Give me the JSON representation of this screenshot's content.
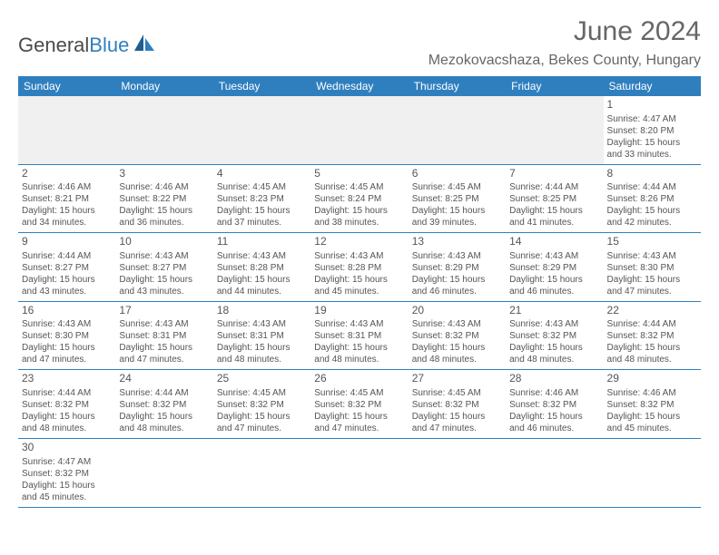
{
  "logo": {
    "text1": "General",
    "text2": "Blue"
  },
  "title": "June 2024",
  "location": "Mezokovacshaza, Bekes County, Hungary",
  "colors": {
    "header_bg": "#2f7fbf",
    "header_text": "#ffffff",
    "text": "#555555",
    "title_text": "#666666",
    "row_border": "#2f7fbf",
    "empty_bg": "#f0f0f0",
    "page_bg": "#ffffff"
  },
  "weekdays": [
    "Sunday",
    "Monday",
    "Tuesday",
    "Wednesday",
    "Thursday",
    "Friday",
    "Saturday"
  ],
  "weeks": [
    [
      null,
      null,
      null,
      null,
      null,
      null,
      {
        "n": "1",
        "sr": "Sunrise: 4:47 AM",
        "ss": "Sunset: 8:20 PM",
        "d1": "Daylight: 15 hours",
        "d2": "and 33 minutes."
      }
    ],
    [
      {
        "n": "2",
        "sr": "Sunrise: 4:46 AM",
        "ss": "Sunset: 8:21 PM",
        "d1": "Daylight: 15 hours",
        "d2": "and 34 minutes."
      },
      {
        "n": "3",
        "sr": "Sunrise: 4:46 AM",
        "ss": "Sunset: 8:22 PM",
        "d1": "Daylight: 15 hours",
        "d2": "and 36 minutes."
      },
      {
        "n": "4",
        "sr": "Sunrise: 4:45 AM",
        "ss": "Sunset: 8:23 PM",
        "d1": "Daylight: 15 hours",
        "d2": "and 37 minutes."
      },
      {
        "n": "5",
        "sr": "Sunrise: 4:45 AM",
        "ss": "Sunset: 8:24 PM",
        "d1": "Daylight: 15 hours",
        "d2": "and 38 minutes."
      },
      {
        "n": "6",
        "sr": "Sunrise: 4:45 AM",
        "ss": "Sunset: 8:25 PM",
        "d1": "Daylight: 15 hours",
        "d2": "and 39 minutes."
      },
      {
        "n": "7",
        "sr": "Sunrise: 4:44 AM",
        "ss": "Sunset: 8:25 PM",
        "d1": "Daylight: 15 hours",
        "d2": "and 41 minutes."
      },
      {
        "n": "8",
        "sr": "Sunrise: 4:44 AM",
        "ss": "Sunset: 8:26 PM",
        "d1": "Daylight: 15 hours",
        "d2": "and 42 minutes."
      }
    ],
    [
      {
        "n": "9",
        "sr": "Sunrise: 4:44 AM",
        "ss": "Sunset: 8:27 PM",
        "d1": "Daylight: 15 hours",
        "d2": "and 43 minutes."
      },
      {
        "n": "10",
        "sr": "Sunrise: 4:43 AM",
        "ss": "Sunset: 8:27 PM",
        "d1": "Daylight: 15 hours",
        "d2": "and 43 minutes."
      },
      {
        "n": "11",
        "sr": "Sunrise: 4:43 AM",
        "ss": "Sunset: 8:28 PM",
        "d1": "Daylight: 15 hours",
        "d2": "and 44 minutes."
      },
      {
        "n": "12",
        "sr": "Sunrise: 4:43 AM",
        "ss": "Sunset: 8:28 PM",
        "d1": "Daylight: 15 hours",
        "d2": "and 45 minutes."
      },
      {
        "n": "13",
        "sr": "Sunrise: 4:43 AM",
        "ss": "Sunset: 8:29 PM",
        "d1": "Daylight: 15 hours",
        "d2": "and 46 minutes."
      },
      {
        "n": "14",
        "sr": "Sunrise: 4:43 AM",
        "ss": "Sunset: 8:29 PM",
        "d1": "Daylight: 15 hours",
        "d2": "and 46 minutes."
      },
      {
        "n": "15",
        "sr": "Sunrise: 4:43 AM",
        "ss": "Sunset: 8:30 PM",
        "d1": "Daylight: 15 hours",
        "d2": "and 47 minutes."
      }
    ],
    [
      {
        "n": "16",
        "sr": "Sunrise: 4:43 AM",
        "ss": "Sunset: 8:30 PM",
        "d1": "Daylight: 15 hours",
        "d2": "and 47 minutes."
      },
      {
        "n": "17",
        "sr": "Sunrise: 4:43 AM",
        "ss": "Sunset: 8:31 PM",
        "d1": "Daylight: 15 hours",
        "d2": "and 47 minutes."
      },
      {
        "n": "18",
        "sr": "Sunrise: 4:43 AM",
        "ss": "Sunset: 8:31 PM",
        "d1": "Daylight: 15 hours",
        "d2": "and 48 minutes."
      },
      {
        "n": "19",
        "sr": "Sunrise: 4:43 AM",
        "ss": "Sunset: 8:31 PM",
        "d1": "Daylight: 15 hours",
        "d2": "and 48 minutes."
      },
      {
        "n": "20",
        "sr": "Sunrise: 4:43 AM",
        "ss": "Sunset: 8:32 PM",
        "d1": "Daylight: 15 hours",
        "d2": "and 48 minutes."
      },
      {
        "n": "21",
        "sr": "Sunrise: 4:43 AM",
        "ss": "Sunset: 8:32 PM",
        "d1": "Daylight: 15 hours",
        "d2": "and 48 minutes."
      },
      {
        "n": "22",
        "sr": "Sunrise: 4:44 AM",
        "ss": "Sunset: 8:32 PM",
        "d1": "Daylight: 15 hours",
        "d2": "and 48 minutes."
      }
    ],
    [
      {
        "n": "23",
        "sr": "Sunrise: 4:44 AM",
        "ss": "Sunset: 8:32 PM",
        "d1": "Daylight: 15 hours",
        "d2": "and 48 minutes."
      },
      {
        "n": "24",
        "sr": "Sunrise: 4:44 AM",
        "ss": "Sunset: 8:32 PM",
        "d1": "Daylight: 15 hours",
        "d2": "and 48 minutes."
      },
      {
        "n": "25",
        "sr": "Sunrise: 4:45 AM",
        "ss": "Sunset: 8:32 PM",
        "d1": "Daylight: 15 hours",
        "d2": "and 47 minutes."
      },
      {
        "n": "26",
        "sr": "Sunrise: 4:45 AM",
        "ss": "Sunset: 8:32 PM",
        "d1": "Daylight: 15 hours",
        "d2": "and 47 minutes."
      },
      {
        "n": "27",
        "sr": "Sunrise: 4:45 AM",
        "ss": "Sunset: 8:32 PM",
        "d1": "Daylight: 15 hours",
        "d2": "and 47 minutes."
      },
      {
        "n": "28",
        "sr": "Sunrise: 4:46 AM",
        "ss": "Sunset: 8:32 PM",
        "d1": "Daylight: 15 hours",
        "d2": "and 46 minutes."
      },
      {
        "n": "29",
        "sr": "Sunrise: 4:46 AM",
        "ss": "Sunset: 8:32 PM",
        "d1": "Daylight: 15 hours",
        "d2": "and 45 minutes."
      }
    ],
    [
      {
        "n": "30",
        "sr": "Sunrise: 4:47 AM",
        "ss": "Sunset: 8:32 PM",
        "d1": "Daylight: 15 hours",
        "d2": "and 45 minutes."
      },
      null,
      null,
      null,
      null,
      null,
      null
    ]
  ]
}
